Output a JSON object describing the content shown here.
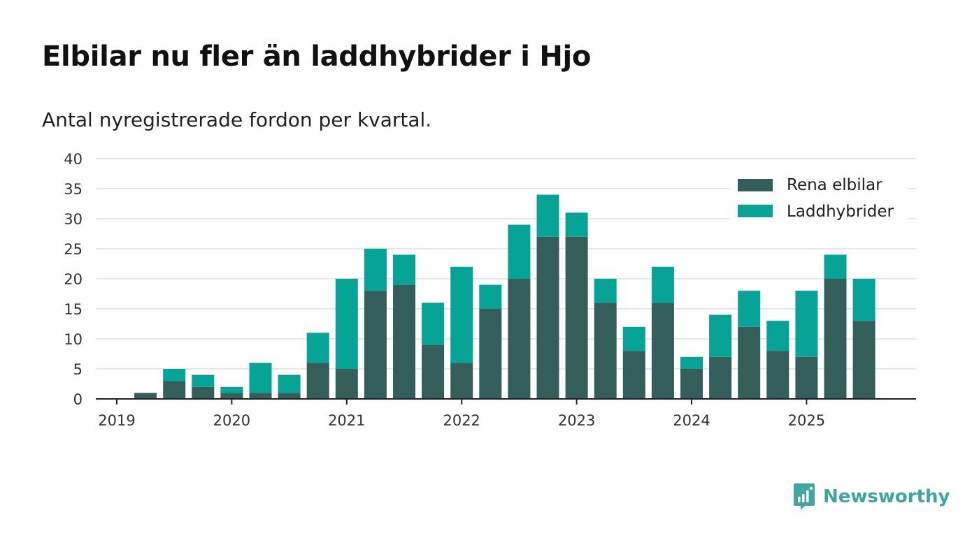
{
  "header": {
    "title": "Elbilar nu fler än laddhybrider i Hjo",
    "subtitle": "Antal nyregistrerade fordon per kvartal."
  },
  "brand": {
    "name": "Newsworthy"
  },
  "colors": {
    "rena": "#335e5a",
    "ladd": "#06a497",
    "grid": "#dddddd",
    "axis": "#222222"
  },
  "chart_data": {
    "type": "bar",
    "stacked": true,
    "title": "Elbilar nu fler än laddhybrider i Hjo",
    "subtitle": "Antal nyregistrerade fordon per kvartal.",
    "xlabel": "",
    "ylabel": "",
    "ylim": [
      0,
      40
    ],
    "yticks": [
      0,
      5,
      10,
      15,
      20,
      25,
      30,
      35,
      40
    ],
    "grid": true,
    "legend_position": "top-right",
    "x_tick_labels": [
      "2019",
      "2020",
      "2021",
      "2022",
      "2023",
      "2024",
      "2025"
    ],
    "categories": [
      "2019 Q1",
      "2019 Q2",
      "2019 Q3",
      "2019 Q4",
      "2020 Q1",
      "2020 Q2",
      "2020 Q3",
      "2020 Q4",
      "2021 Q1",
      "2021 Q2",
      "2021 Q3",
      "2021 Q4",
      "2022 Q1",
      "2022 Q2",
      "2022 Q3",
      "2022 Q4",
      "2023 Q1",
      "2023 Q2",
      "2023 Q3",
      "2023 Q4",
      "2024 Q1",
      "2024 Q2",
      "2024 Q3",
      "2024 Q4",
      "2025 Q1",
      "2025 Q2",
      "2025 Q3"
    ],
    "series": [
      {
        "name": "Rena elbilar",
        "values": [
          0,
          1,
          3,
          2,
          1,
          1,
          1,
          6,
          5,
          18,
          19,
          9,
          6,
          15,
          20,
          27,
          27,
          16,
          8,
          16,
          5,
          7,
          12,
          8,
          7,
          20,
          13
        ]
      },
      {
        "name": "Laddhybrider",
        "values": [
          0,
          0,
          2,
          2,
          1,
          5,
          3,
          5,
          15,
          7,
          5,
          7,
          16,
          4,
          9,
          7,
          4,
          4,
          4,
          6,
          2,
          7,
          6,
          5,
          11,
          4,
          7
        ]
      }
    ]
  }
}
